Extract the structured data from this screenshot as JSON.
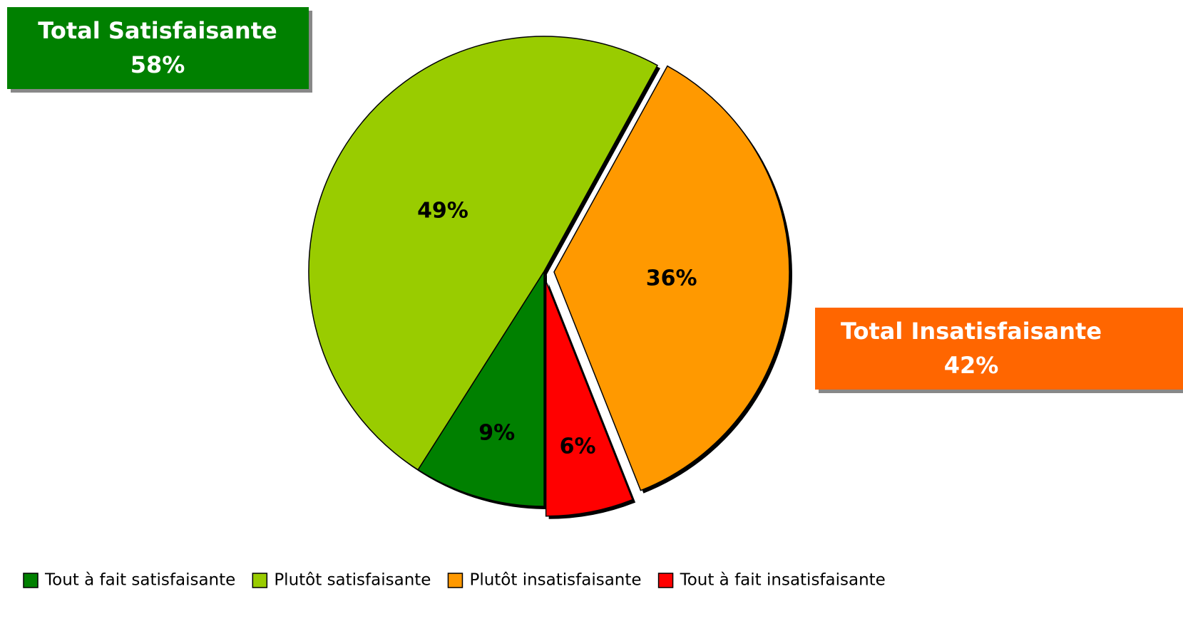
{
  "chart_data": {
    "type": "pie",
    "categories": [
      "Tout à fait satisfaisante",
      "Plutôt satisfaisante",
      "Plutôt insatisfaisante",
      "Tout à fait insatisfaisante"
    ],
    "values": [
      9,
      49,
      36,
      6
    ],
    "value_labels": [
      "9%",
      "49%",
      "36%",
      "6%"
    ],
    "colors": [
      "#008000",
      "#99cc00",
      "#ff9900",
      "#ff0000"
    ],
    "exploded": [
      false,
      false,
      true,
      true
    ],
    "legend": "bottom",
    "annotations": [
      {
        "text": "Total Satisfaisante",
        "label": "58%",
        "color": "#008000"
      },
      {
        "text": "Total Insatisfaisante",
        "label": "42%",
        "color": "#ff6600"
      }
    ]
  }
}
